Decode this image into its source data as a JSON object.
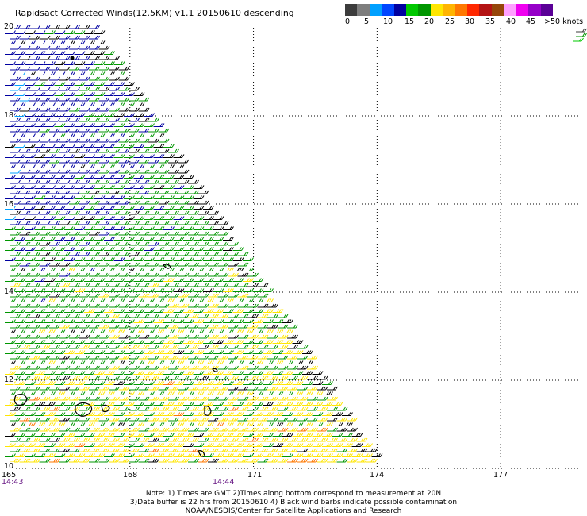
{
  "title": "Rapidsact Corrected Winds(12.5KM) v1.1 20150610 descending",
  "legend": {
    "colors": [
      "#3c3c3c",
      "#7e7e7e",
      "#00a0ff",
      "#0046ff",
      "#0000a0",
      "#00c800",
      "#009600",
      "#ffe600",
      "#ffb400",
      "#ff7800",
      "#ff2800",
      "#b41414",
      "#96460a",
      "#ffa0ff",
      "#f000f0",
      "#9600c8",
      "#5a0096"
    ],
    "labels": [
      "0",
      "5",
      "10",
      "15",
      "20",
      "25",
      "30",
      "35",
      "40",
      "45",
      ">50 knots"
    ]
  },
  "latitude_labels": [
    "20",
    "18",
    "16",
    "14",
    "12",
    "10"
  ],
  "longitude_labels": [
    "165",
    "168",
    "171",
    "174",
    "177"
  ],
  "times": [
    "14:43",
    "14:44"
  ],
  "notes": [
    "Note: 1) Times are GMT 2)Times along bottom correspond to measurement at 20N",
    "3)Data buffer is 22 hrs from 20150610 4) Black wind barbs indicate possible contamination",
    "NOAA/NESDIS/Center for Satellite Applications and Research"
  ],
  "map_data": {
    "lat_range": [
      10,
      20
    ],
    "lon_range": [
      165,
      179
    ],
    "wind_color_bands": [
      {
        "max_knots": 5,
        "color": "#3c3c3c"
      },
      {
        "max_knots": 10,
        "color": "#00a0ff"
      },
      {
        "max_knots": 15,
        "color": "#0000a0"
      },
      {
        "max_knots": 20,
        "color": "#009600"
      },
      {
        "max_knots": 25,
        "color": "#ffe600"
      },
      {
        "max_knots": 30,
        "color": "#ff7800"
      },
      {
        "max_knots": 35,
        "color": "#b41414"
      },
      {
        "max_knots": 40,
        "color": "#96460a"
      },
      {
        "max_knots": 45,
        "color": "#f000f0"
      },
      {
        "max_knots": 99,
        "color": "#5a0096"
      }
    ],
    "contamination_color": "#000000"
  }
}
